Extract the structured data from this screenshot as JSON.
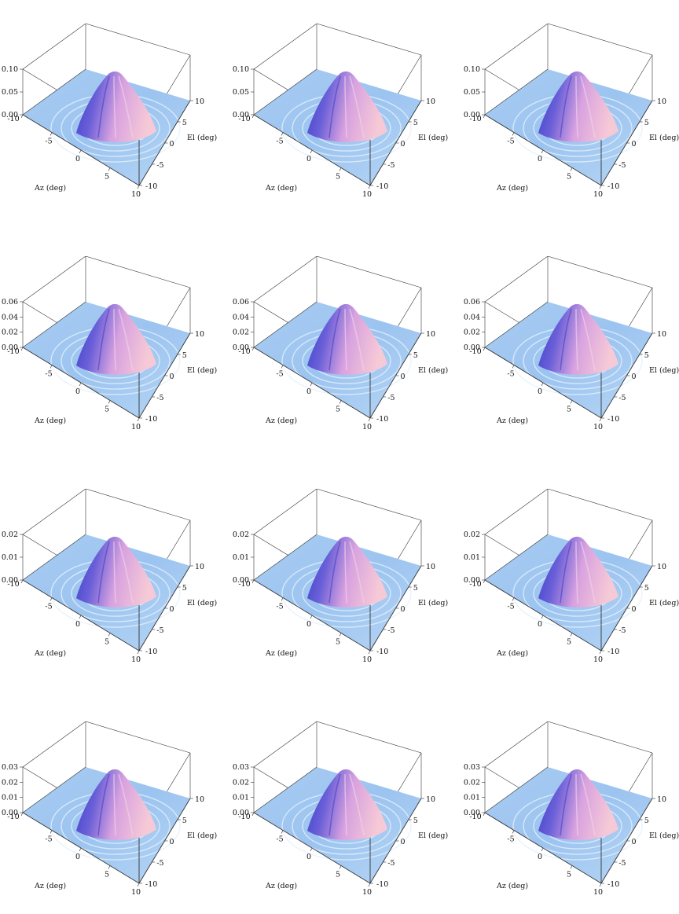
{
  "chart_data": [
    {
      "type": "surface",
      "xlabel": "Az (deg)",
      "ylabel": "El (deg)",
      "x_ticks": [
        "-10",
        "-5",
        "0",
        "5",
        "10"
      ],
      "y_ticks": [
        "-10",
        "-5",
        "0",
        "5",
        "10"
      ],
      "xlim": [
        -10,
        10
      ],
      "ylim": [
        -10,
        10
      ],
      "z_ticks": [
        "0.00",
        "0.05",
        "0.10"
      ],
      "zlim": [
        0,
        0.1
      ],
      "peak": 0.1
    },
    {
      "type": "surface",
      "xlabel": "Az (deg)",
      "ylabel": "El (deg)",
      "x_ticks": [
        "-10",
        "-5",
        "0",
        "5",
        "10"
      ],
      "y_ticks": [
        "-10",
        "-5",
        "0",
        "5",
        "10"
      ],
      "xlim": [
        -10,
        10
      ],
      "ylim": [
        -10,
        10
      ],
      "z_ticks": [
        "0.00",
        "0.05",
        "0.10"
      ],
      "zlim": [
        0,
        0.1
      ],
      "peak": 0.1
    },
    {
      "type": "surface",
      "xlabel": "Az (deg)",
      "ylabel": "El (deg)",
      "x_ticks": [
        "-10",
        "-5",
        "0",
        "5",
        "10"
      ],
      "y_ticks": [
        "-10",
        "-5",
        "0",
        "5",
        "10"
      ],
      "xlim": [
        -10,
        10
      ],
      "ylim": [
        -10,
        10
      ],
      "z_ticks": [
        "0.00",
        "0.05",
        "0.10"
      ],
      "zlim": [
        0,
        0.1
      ],
      "peak": 0.1
    },
    {
      "type": "surface",
      "xlabel": "Az (deg)",
      "ylabel": "El (deg)",
      "x_ticks": [
        "-10",
        "-5",
        "0",
        "5",
        "10"
      ],
      "y_ticks": [
        "-10",
        "-5",
        "0",
        "5",
        "10"
      ],
      "xlim": [
        -10,
        10
      ],
      "ylim": [
        -10,
        10
      ],
      "z_ticks": [
        "0.00",
        "0.02",
        "0.04",
        "0.06"
      ],
      "zlim": [
        0,
        0.06
      ],
      "peak": 0.06
    },
    {
      "type": "surface",
      "xlabel": "Az (deg)",
      "ylabel": "El (deg)",
      "x_ticks": [
        "-10",
        "-5",
        "0",
        "5",
        "10"
      ],
      "y_ticks": [
        "-10",
        "-5",
        "0",
        "5",
        "10"
      ],
      "xlim": [
        -10,
        10
      ],
      "ylim": [
        -10,
        10
      ],
      "z_ticks": [
        "0.00",
        "0.02",
        "0.04",
        "0.06"
      ],
      "zlim": [
        0,
        0.06
      ],
      "peak": 0.06
    },
    {
      "type": "surface",
      "xlabel": "Az (deg)",
      "ylabel": "El (deg)",
      "x_ticks": [
        "-10",
        "-5",
        "0",
        "5",
        "10"
      ],
      "y_ticks": [
        "-10",
        "-5",
        "0",
        "5",
        "10"
      ],
      "xlim": [
        -10,
        10
      ],
      "ylim": [
        -10,
        10
      ],
      "z_ticks": [
        "0.00",
        "0.02",
        "0.04",
        "0.06"
      ],
      "zlim": [
        0,
        0.06
      ],
      "peak": 0.06
    },
    {
      "type": "surface",
      "xlabel": "Az (deg)",
      "ylabel": "El (deg)",
      "x_ticks": [
        "-10",
        "-5",
        "0",
        "5",
        "10"
      ],
      "y_ticks": [
        "-10",
        "-5",
        "0",
        "5",
        "10"
      ],
      "xlim": [
        -10,
        10
      ],
      "ylim": [
        -10,
        10
      ],
      "z_ticks": [
        "0.00",
        "0.01",
        "0.02"
      ],
      "zlim": [
        0,
        0.02
      ],
      "peak": 0.02
    },
    {
      "type": "surface",
      "xlabel": "Az (deg)",
      "ylabel": "El (deg)",
      "x_ticks": [
        "-10",
        "-5",
        "0",
        "5",
        "10"
      ],
      "y_ticks": [
        "-10",
        "-5",
        "0",
        "5",
        "10"
      ],
      "xlim": [
        -10,
        10
      ],
      "ylim": [
        -10,
        10
      ],
      "z_ticks": [
        "0.00",
        "0.01",
        "0.02"
      ],
      "zlim": [
        0,
        0.02
      ],
      "peak": 0.02
    },
    {
      "type": "surface",
      "xlabel": "Az (deg)",
      "ylabel": "El (deg)",
      "x_ticks": [
        "-10",
        "-5",
        "0",
        "5",
        "10"
      ],
      "y_ticks": [
        "-10",
        "-5",
        "0",
        "5",
        "10"
      ],
      "xlim": [
        -10,
        10
      ],
      "ylim": [
        -10,
        10
      ],
      "z_ticks": [
        "0.00",
        "0.01",
        "0.02"
      ],
      "zlim": [
        0,
        0.02
      ],
      "peak": 0.02
    },
    {
      "type": "surface",
      "xlabel": "Az (deg)",
      "ylabel": "El (deg)",
      "x_ticks": [
        "-10",
        "-5",
        "0",
        "5",
        "10"
      ],
      "y_ticks": [
        "-10",
        "-5",
        "0",
        "5",
        "10"
      ],
      "xlim": [
        -10,
        10
      ],
      "ylim": [
        -10,
        10
      ],
      "z_ticks": [
        "0.00",
        "0.01",
        "0.02",
        "0.03"
      ],
      "zlim": [
        0,
        0.03
      ],
      "peak": 0.03
    },
    {
      "type": "surface",
      "xlabel": "Az (deg)",
      "ylabel": "El (deg)",
      "x_ticks": [
        "-10",
        "-5",
        "0",
        "5",
        "10"
      ],
      "y_ticks": [
        "-10",
        "-5",
        "0",
        "5",
        "10"
      ],
      "xlim": [
        -10,
        10
      ],
      "ylim": [
        -10,
        10
      ],
      "z_ticks": [
        "0.00",
        "0.01",
        "0.02",
        "0.03"
      ],
      "zlim": [
        0,
        0.03
      ],
      "peak": 0.03
    },
    {
      "type": "surface",
      "xlabel": "Az (deg)",
      "ylabel": "El (deg)",
      "x_ticks": [
        "-10",
        "-5",
        "0",
        "5",
        "10"
      ],
      "y_ticks": [
        "-10",
        "-5",
        "0",
        "5",
        "10"
      ],
      "xlim": [
        -10,
        10
      ],
      "ylim": [
        -10,
        10
      ],
      "z_ticks": [
        "0.00",
        "0.01",
        "0.02",
        "0.03"
      ],
      "zlim": [
        0,
        0.03
      ],
      "peak": 0.03
    }
  ]
}
